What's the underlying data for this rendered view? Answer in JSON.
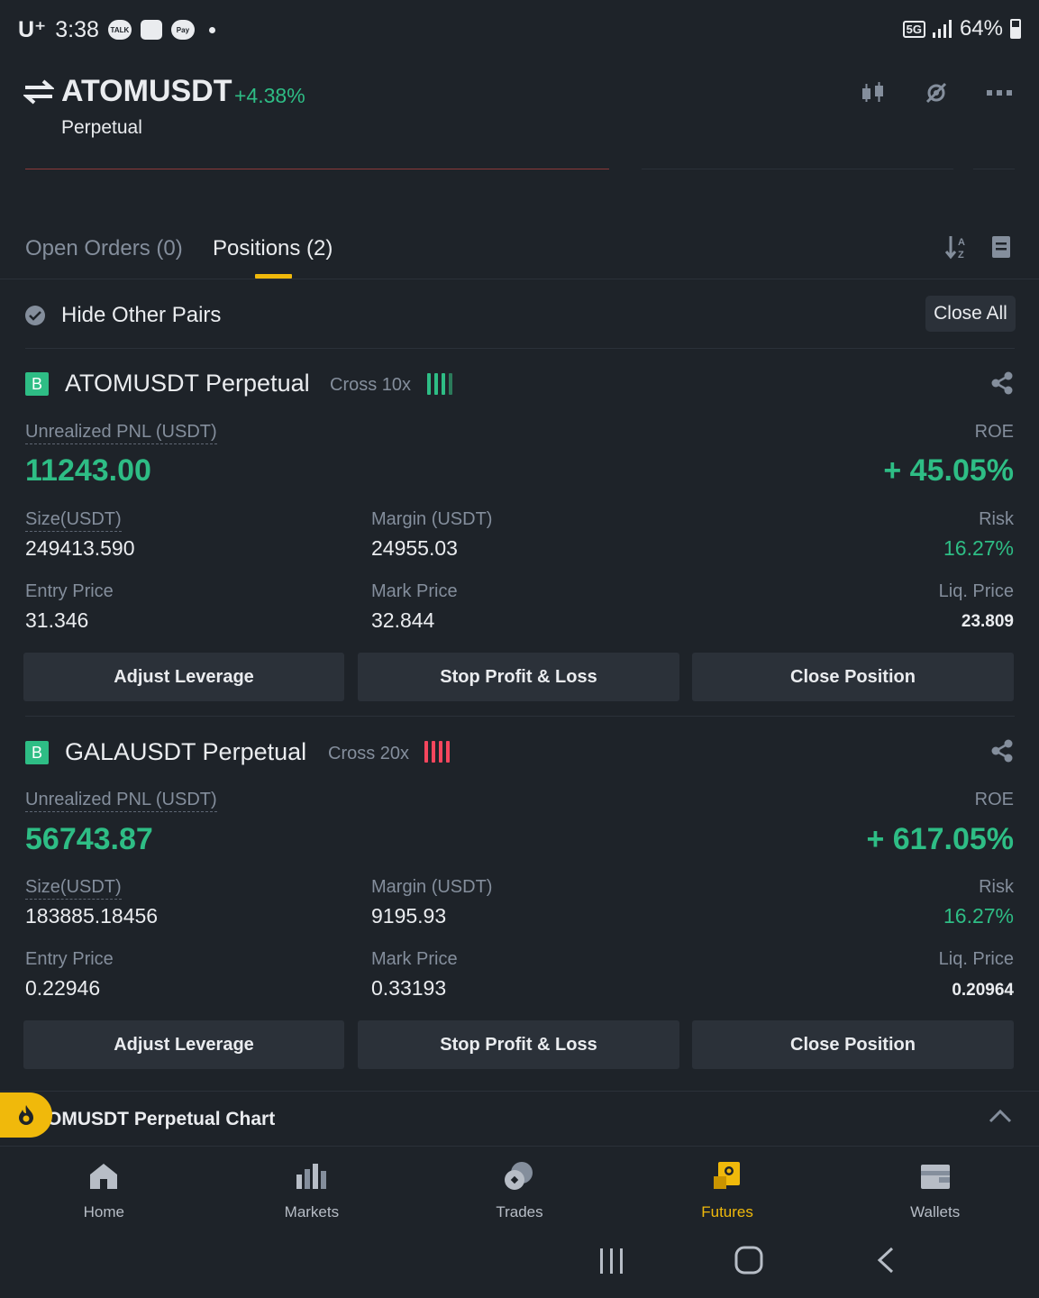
{
  "status": {
    "carrier": "U⁺",
    "time": "3:38",
    "icons": [
      "talk-icon",
      "message-icon",
      "pay-icon"
    ],
    "talk_label": "TALK",
    "pay_label": "Pay",
    "network": "5G",
    "battery": "64%"
  },
  "header": {
    "pair": "ATOMUSDT",
    "change": "+4.38%",
    "subtitle": "Perpetual"
  },
  "tabs": {
    "open_orders": "Open Orders (0)",
    "positions": "Positions (2)"
  },
  "filter": {
    "hide_other_pairs": "Hide Other Pairs",
    "close_all": "Close All"
  },
  "positions": [
    {
      "side_badge": "B",
      "name": "ATOMUSDT Perpetual",
      "margin_mode": "Cross 10x",
      "risk_color": "#2ebd85",
      "pnl_label": "Unrealized PNL (USDT)",
      "pnl": "11243.00",
      "roe_label": "ROE",
      "roe": "+ 45.05%",
      "size_label": "Size(USDT)",
      "size": "249413.590",
      "margin_label": "Margin (USDT)",
      "margin": "24955.03",
      "risk_label": "Risk",
      "risk": "16.27%",
      "entry_label": "Entry Price",
      "entry": "31.346",
      "mark_label": "Mark Price",
      "mark": "32.844",
      "liq_label": "Liq. Price",
      "liq": "23.809",
      "buttons": [
        "Adjust Leverage",
        "Stop Profit & Loss",
        "Close Position"
      ]
    },
    {
      "side_badge": "B",
      "name": "GALAUSDT Perpetual",
      "margin_mode": "Cross 20x",
      "risk_color": "#f6465d",
      "pnl_label": "Unrealized PNL (USDT)",
      "pnl": "56743.87",
      "roe_label": "ROE",
      "roe": "+ 617.05%",
      "size_label": "Size(USDT)",
      "size": "183885.18456",
      "margin_label": "Margin (USDT)",
      "margin": "9195.93",
      "risk_label": "Risk",
      "risk": "16.27%",
      "entry_label": "Entry Price",
      "entry": "0.22946",
      "mark_label": "Mark Price",
      "mark": "0.33193",
      "liq_label": "Liq. Price",
      "liq": "0.20964",
      "buttons": [
        "Adjust Leverage",
        "Stop Profit & Loss",
        "Close Position"
      ]
    }
  ],
  "chart_section": {
    "title": "OMUSDT Perpetual  Chart"
  },
  "nav": [
    {
      "label": "Home",
      "icon": "home-icon"
    },
    {
      "label": "Markets",
      "icon": "markets-icon"
    },
    {
      "label": "Trades",
      "icon": "trades-icon"
    },
    {
      "label": "Futures",
      "icon": "futures-icon",
      "active": true
    },
    {
      "label": "Wallets",
      "icon": "wallet-icon"
    }
  ],
  "colors": {
    "background": "#1e2329",
    "green": "#2ebd85",
    "red": "#f6465d",
    "accent": "#f0b90b"
  }
}
